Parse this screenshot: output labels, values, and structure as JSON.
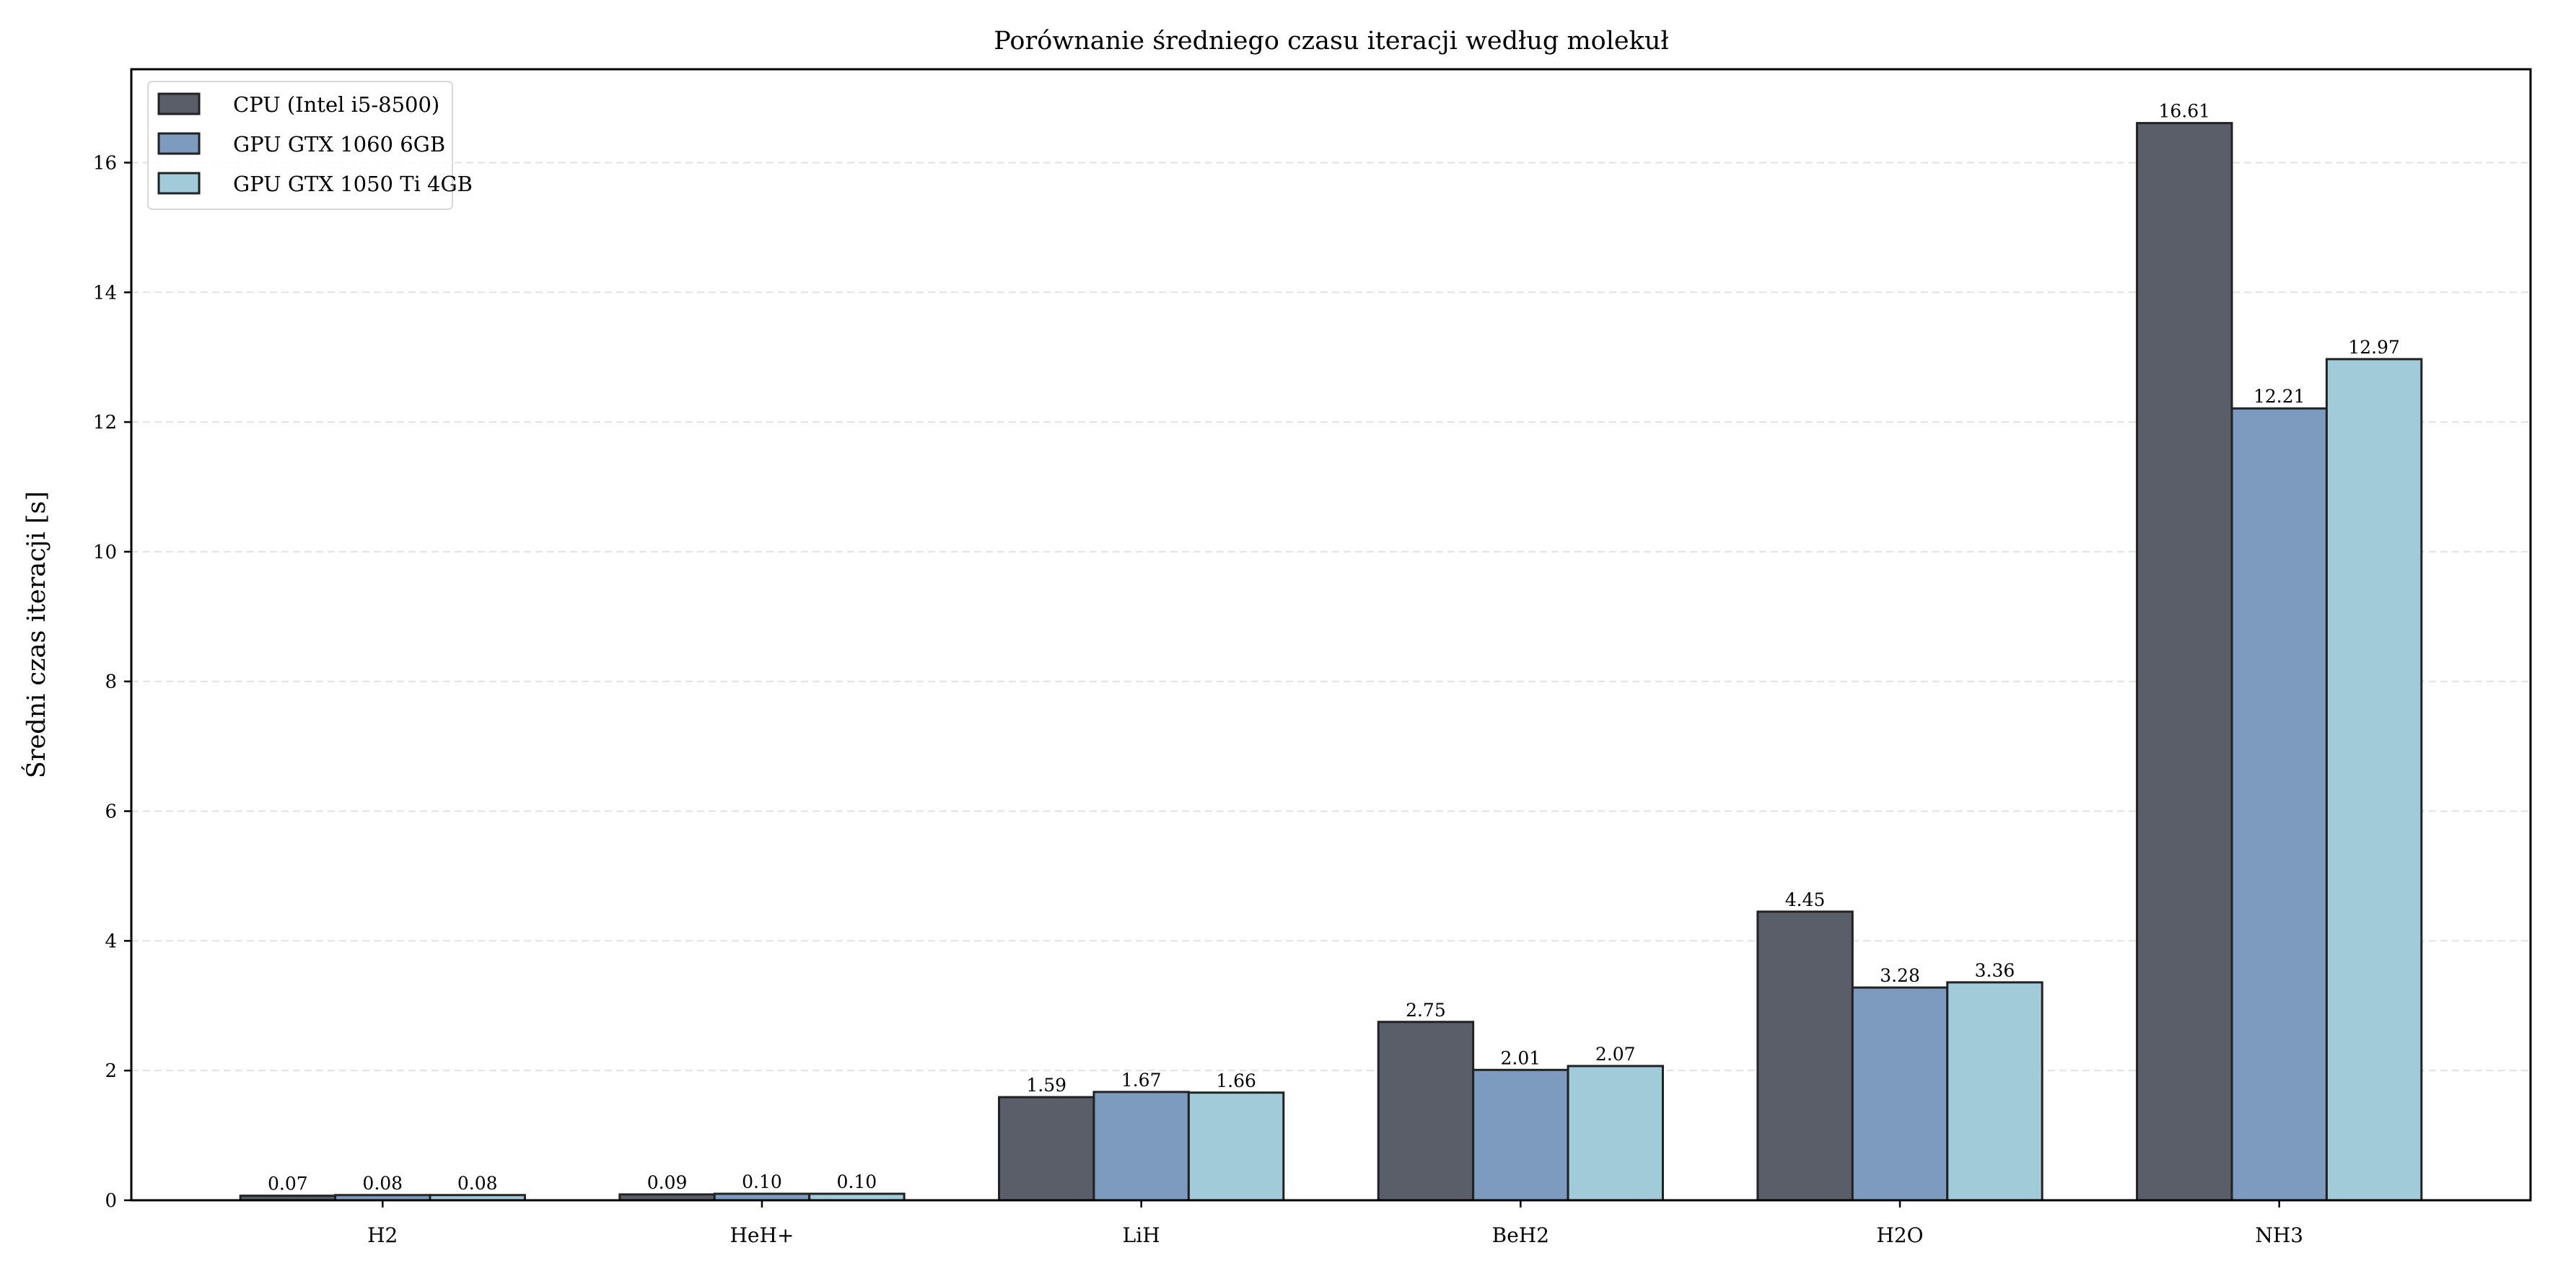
{
  "chart_data": {
    "type": "bar",
    "title": "Porównanie średniego czasu iteracji według molekuł",
    "xlabel": "",
    "ylabel": "Średni czas iteracji [s]",
    "categories": [
      "H2",
      "HeH+",
      "LiH",
      "BeH2",
      "H2O",
      "NH3"
    ],
    "series": [
      {
        "name": "CPU (Intel i5-8500)",
        "color": "#5a5e68",
        "values": [
          0.07,
          0.09,
          1.59,
          2.75,
          4.45,
          16.61
        ]
      },
      {
        "name": "GPU GTX 1060 6GB",
        "color": "#7d9bbe",
        "values": [
          0.08,
          0.1,
          1.67,
          2.01,
          3.28,
          12.21
        ]
      },
      {
        "name": "GPU GTX 1050 Ti 4GB",
        "color": "#a1cbd8",
        "values": [
          0.08,
          0.1,
          1.66,
          2.07,
          3.36,
          12.97
        ]
      }
    ],
    "ylim": [
      0,
      17.44
    ],
    "yticks": [
      0,
      2,
      4,
      6,
      8,
      10,
      12,
      14,
      16
    ],
    "grid": "y dashed",
    "legend": "top-left"
  }
}
